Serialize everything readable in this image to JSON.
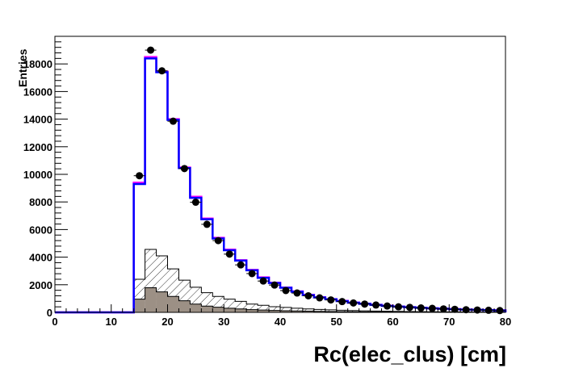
{
  "chart_data": {
    "type": "bar",
    "title": "",
    "xlabel": "Rc(elec_clus) [cm]",
    "ylabel": "Entries",
    "xlim": [
      0,
      80
    ],
    "ylim": [
      0,
      20000
    ],
    "bin_width": 2,
    "x_ticks": [
      "0",
      "10",
      "20",
      "30",
      "40",
      "50",
      "60",
      "70",
      "80"
    ],
    "y_ticks": [
      "0",
      "2000",
      "4000",
      "6000",
      "8000",
      "10000",
      "12000",
      "14000",
      "16000",
      "18000"
    ],
    "bin_edges_start": [
      0,
      2,
      4,
      6,
      8,
      10,
      12,
      14,
      16,
      18,
      20,
      22,
      24,
      26,
      28,
      30,
      32,
      34,
      36,
      38,
      40,
      42,
      44,
      46,
      48,
      50,
      52,
      54,
      56,
      58,
      60,
      62,
      64,
      66,
      68,
      70,
      72,
      74,
      76,
      78
    ],
    "series": [
      {
        "style": "step-line",
        "color": "#ff00ff",
        "values": [
          0,
          0,
          0,
          0,
          0,
          0,
          0,
          9400,
          18500,
          17450,
          14000,
          10500,
          8380,
          6800,
          5400,
          4550,
          3780,
          3080,
          2540,
          2150,
          1800,
          1520,
          1270,
          1100,
          960,
          830,
          710,
          630,
          550,
          480,
          425,
          375,
          335,
          295,
          265,
          235,
          205,
          185,
          165,
          145
        ]
      },
      {
        "style": "step-line",
        "color": "#0000ff",
        "values": [
          0,
          0,
          0,
          0,
          0,
          0,
          0,
          9300,
          18400,
          17400,
          13950,
          10450,
          8300,
          6750,
          5350,
          4500,
          3750,
          3050,
          2500,
          2130,
          1780,
          1500,
          1250,
          1080,
          950,
          820,
          700,
          620,
          540,
          470,
          420,
          370,
          330,
          290,
          260,
          230,
          200,
          180,
          160,
          140
        ]
      },
      {
        "style": "hatched",
        "color": "#000000",
        "values": [
          0,
          0,
          0,
          0,
          0,
          0,
          0,
          2400,
          4560,
          4090,
          3150,
          2330,
          1820,
          1425,
          1155,
          955,
          800,
          600,
          510,
          410,
          360,
          300,
          250,
          210,
          180,
          150,
          130,
          110,
          95,
          80,
          70,
          60,
          50,
          45,
          40,
          35,
          30,
          25,
          22,
          20
        ]
      },
      {
        "style": "filled",
        "color": "#9c9085",
        "values": [
          0,
          0,
          0,
          0,
          0,
          0,
          0,
          955,
          1780,
          1485,
          1155,
          840,
          600,
          450,
          370,
          300,
          250,
          200,
          170,
          140,
          120,
          100,
          85,
          70,
          60,
          50,
          42,
          36,
          30,
          26,
          22,
          19,
          16,
          14,
          12,
          10,
          9,
          8,
          7,
          6
        ]
      },
      {
        "style": "points",
        "color": "#000000",
        "x": [
          15,
          17,
          19,
          21,
          23,
          25,
          27,
          29,
          31,
          33,
          35,
          37,
          39,
          41,
          43,
          45,
          47,
          49,
          51,
          53,
          55,
          57,
          59,
          61,
          63,
          65,
          67,
          69,
          71,
          73,
          75,
          77,
          79
        ],
        "values": [
          9900,
          19000,
          17500,
          13850,
          10420,
          7980,
          6380,
          5200,
          4220,
          3440,
          2810,
          2270,
          1980,
          1580,
          1400,
          1200,
          1050,
          900,
          780,
          680,
          600,
          530,
          460,
          400,
          360,
          320,
          290,
          250,
          220,
          190,
          170,
          150,
          130
        ]
      }
    ]
  }
}
